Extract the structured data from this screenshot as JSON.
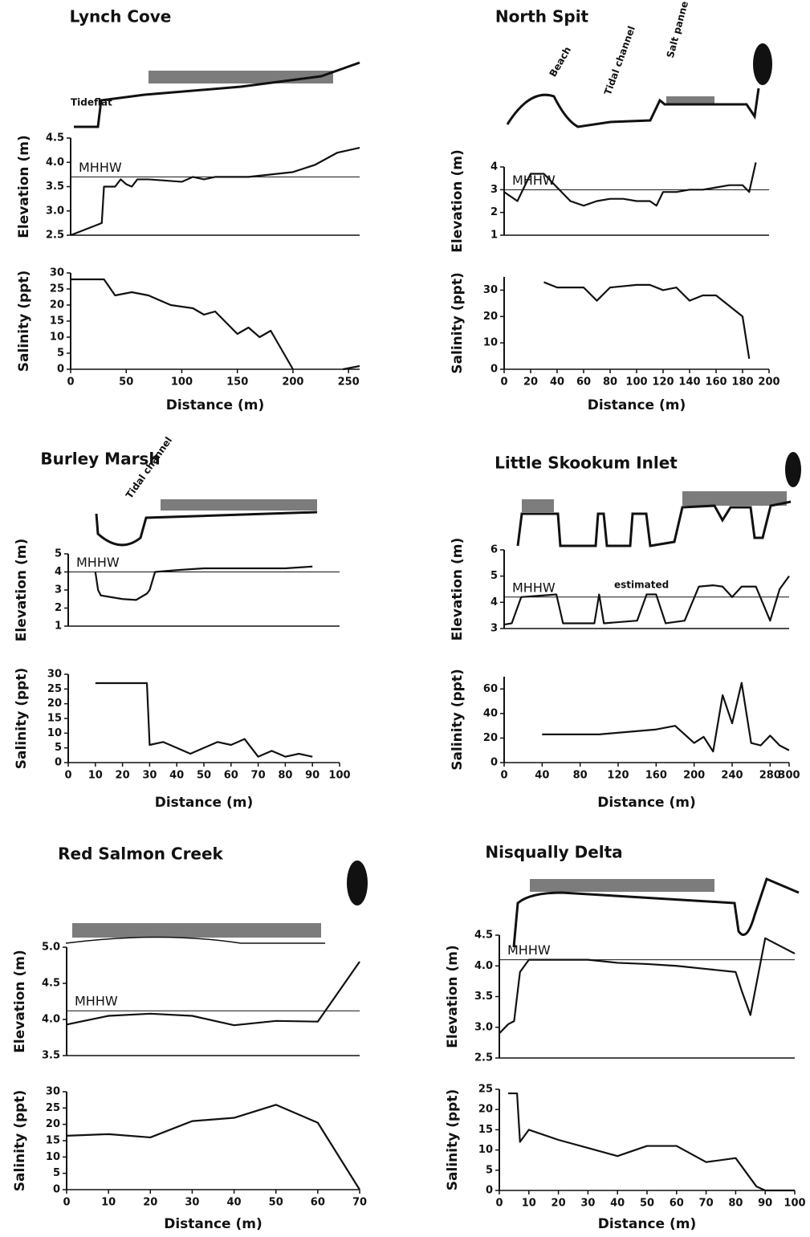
{
  "chart_data": [
    {
      "type": "line",
      "title": "Lynch Cove",
      "ylabel": "Elevation (m)",
      "annotations": [
        "Tideflat"
      ],
      "reference_line": {
        "label": "MHHW",
        "value": 3.7
      },
      "x": [
        0,
        28,
        30,
        40,
        45,
        50,
        55,
        60,
        70,
        100,
        110,
        120,
        130,
        140,
        160,
        180,
        200,
        220,
        240,
        260
      ],
      "values": [
        2.5,
        2.75,
        3.5,
        3.5,
        3.65,
        3.55,
        3.5,
        3.65,
        3.65,
        3.6,
        3.7,
        3.65,
        3.7,
        3.7,
        3.7,
        3.75,
        3.8,
        3.95,
        4.2,
        4.3
      ],
      "color": "#111111",
      "xlim": [
        0,
        260
      ],
      "ylim": [
        2.5,
        4.5
      ],
      "yticks": [
        2.5,
        {
          "value": 3,
          "label": "3.0"
        },
        3.5,
        {
          "value": 4,
          "label": "4.0"
        },
        4.5
      ]
    },
    {
      "type": "line",
      "ylabel": "Salinity (ppt)",
      "xlabel": "Distance (m)",
      "x": [
        0,
        30,
        40,
        55,
        70,
        90,
        110,
        120,
        130,
        150,
        160,
        170,
        180,
        200,
        225,
        245,
        260
      ],
      "values": [
        28,
        28,
        23,
        24,
        23,
        20,
        19,
        17,
        18,
        11,
        13,
        10,
        12,
        0,
        null,
        0,
        1
      ],
      "color": "#111111",
      "xlim": [
        0,
        260
      ],
      "ylim": [
        0,
        30
      ],
      "xticks": [
        0,
        50,
        100,
        150,
        200,
        250
      ],
      "yticks": [
        0,
        5,
        10,
        15,
        20,
        25,
        30
      ]
    },
    {
      "type": "line",
      "title": "North Spit",
      "ylabel": "Elevation (m)",
      "annotations": [
        "Beach",
        "Tidal channel",
        "Salt panne"
      ],
      "reference_line": {
        "label": "MHHW",
        "value": 3.0
      },
      "x": [
        0,
        10,
        20,
        30,
        40,
        50,
        60,
        70,
        80,
        90,
        100,
        110,
        115,
        120,
        130,
        140,
        150,
        160,
        170,
        180,
        185,
        190
      ],
      "values": [
        2.9,
        2.5,
        3.7,
        3.7,
        3.1,
        2.5,
        2.3,
        2.5,
        2.6,
        2.6,
        2.5,
        2.5,
        2.3,
        2.9,
        2.9,
        3.0,
        3.0,
        3.1,
        3.2,
        3.2,
        2.9,
        4.2
      ],
      "color": "#111111",
      "xlim": [
        0,
        200
      ],
      "ylim": [
        1,
        4
      ],
      "yticks": [
        1,
        2,
        3,
        4
      ]
    },
    {
      "type": "line",
      "ylabel": "Salinity (ppt)",
      "xlabel": "Distance (m)",
      "x": [
        30,
        40,
        60,
        70,
        80,
        100,
        110,
        120,
        130,
        140,
        150,
        160,
        170,
        180,
        185
      ],
      "values": [
        33,
        31,
        31,
        26,
        31,
        32,
        32,
        30,
        31,
        26,
        28,
        28,
        24,
        20,
        4
      ],
      "color": "#111111",
      "xlim": [
        0,
        200
      ],
      "ylim": [
        0,
        35
      ],
      "xticks": [
        0,
        20,
        40,
        60,
        80,
        100,
        120,
        140,
        160,
        180,
        200
      ],
      "yticks": [
        0,
        10,
        20,
        30
      ]
    },
    {
      "type": "line",
      "title": "Burley Marsh",
      "ylabel": "Elevation (m)",
      "annotations": [
        "Tidal channel"
      ],
      "reference_line": {
        "label": "MHHW",
        "value": 4.0
      },
      "x": [
        10,
        11,
        12,
        20,
        25,
        29,
        30,
        32,
        40,
        50,
        60,
        70,
        80,
        90
      ],
      "values": [
        4.0,
        3.0,
        2.7,
        2.5,
        2.45,
        2.8,
        3.0,
        4.0,
        4.1,
        4.2,
        4.2,
        4.2,
        4.2,
        4.3
      ],
      "color": "#111111",
      "xlim": [
        0,
        100
      ],
      "ylim": [
        1,
        5
      ],
      "yticks": [
        1,
        2,
        3,
        4,
        5
      ]
    },
    {
      "type": "line",
      "ylabel": "Salinity (ppt)",
      "xlabel": "Distance (m)",
      "x": [
        10,
        20,
        29,
        30,
        35,
        40,
        45,
        50,
        55,
        60,
        65,
        70,
        75,
        80,
        85,
        90
      ],
      "values": [
        27,
        27,
        27,
        6,
        7,
        5,
        3,
        5,
        7,
        6,
        8,
        2,
        4,
        2,
        3,
        2
      ],
      "color": "#111111",
      "xlim": [
        0,
        100
      ],
      "ylim": [
        0,
        30
      ],
      "xticks": [
        0,
        10,
        20,
        30,
        40,
        50,
        60,
        70,
        80,
        90,
        100
      ],
      "yticks": [
        0,
        5,
        10,
        15,
        20,
        25,
        30
      ]
    },
    {
      "type": "line",
      "title": "Little Skookum Inlet",
      "ylabel": "Elevation (m)",
      "annotations": [
        "estimated"
      ],
      "reference_line": {
        "label": "MHHW",
        "value": 4.2
      },
      "x": [
        0,
        8,
        18,
        55,
        62,
        95,
        100,
        105,
        140,
        150,
        160,
        170,
        190,
        205,
        220,
        230,
        240,
        250,
        265,
        280,
        290,
        300
      ],
      "values": [
        3.15,
        3.2,
        4.2,
        4.3,
        3.2,
        3.2,
        4.3,
        3.2,
        3.3,
        4.3,
        4.3,
        3.2,
        3.3,
        4.6,
        4.65,
        4.6,
        4.2,
        4.6,
        4.6,
        3.3,
        4.5,
        5.0
      ],
      "color": "#111111",
      "xlim": [
        0,
        300
      ],
      "ylim": [
        3,
        6
      ],
      "yticks": [
        3,
        4,
        5,
        6
      ]
    },
    {
      "type": "line",
      "ylabel": "Salinity (ppt)",
      "xlabel": "Distance (m)",
      "x": [
        40,
        100,
        160,
        180,
        200,
        210,
        220,
        230,
        240,
        250,
        260,
        270,
        280,
        290,
        300
      ],
      "values": [
        23,
        23,
        27,
        30,
        16,
        21,
        9,
        55,
        32,
        65,
        16,
        14,
        22,
        14,
        10
      ],
      "color": "#111111",
      "xlim": [
        0,
        300
      ],
      "ylim": [
        0,
        70
      ],
      "xticks": [
        0,
        40,
        80,
        120,
        160,
        200,
        240,
        280,
        300
      ],
      "yticks": [
        0,
        20,
        40,
        60
      ]
    },
    {
      "type": "line",
      "title": "Red Salmon Creek",
      "ylabel": "Elevation (m)",
      "reference_line": {
        "label": "MHHW",
        "value": 4.12
      },
      "x": [
        0,
        10,
        20,
        30,
        40,
        50,
        60,
        70
      ],
      "values": [
        3.93,
        4.05,
        4.08,
        4.05,
        3.92,
        3.98,
        3.97,
        4.8
      ],
      "color": "#111111",
      "xlim": [
        0,
        70
      ],
      "ylim": [
        3.5,
        5
      ],
      "yticks": [
        3.5,
        {
          "value": 4,
          "label": "4.0"
        },
        4.5,
        {
          "value": 5,
          "label": "5.0"
        }
      ]
    },
    {
      "type": "line",
      "ylabel": "Salinity (ppt)",
      "xlabel": "Distance (m)",
      "x": [
        0,
        10,
        20,
        30,
        40,
        50,
        60,
        70
      ],
      "values": [
        16.5,
        17,
        16,
        21,
        22,
        26,
        20.5,
        0
      ],
      "color": "#111111",
      "xlim": [
        0,
        70
      ],
      "ylim": [
        0,
        30
      ],
      "xticks": [
        0,
        10,
        20,
        30,
        40,
        50,
        60,
        70
      ],
      "yticks": [
        0,
        5,
        10,
        15,
        20,
        25,
        30
      ]
    },
    {
      "type": "line",
      "title": "Nisqually Delta",
      "ylabel": "Elevation (m)",
      "reference_line": {
        "label": "MHHW",
        "value": 4.1
      },
      "x": [
        0,
        3,
        5,
        7,
        10,
        20,
        30,
        40,
        50,
        60,
        70,
        80,
        82,
        85,
        90,
        100
      ],
      "values": [
        2.9,
        3.05,
        3.1,
        3.9,
        4.1,
        4.1,
        4.1,
        4.05,
        4.03,
        4.0,
        3.95,
        3.9,
        3.6,
        3.2,
        4.45,
        4.2
      ],
      "color": "#111111",
      "xlim": [
        0,
        100
      ],
      "ylim": [
        2.5,
        4.5
      ],
      "yticks": [
        2.5,
        {
          "value": 3,
          "label": "3.0"
        },
        3.5,
        {
          "value": 4,
          "label": "4.0"
        },
        4.5
      ]
    },
    {
      "type": "line",
      "ylabel": "Salinity (ppt)",
      "xlabel": "Distance (m)",
      "x": [
        3,
        6,
        7,
        10,
        20,
        30,
        40,
        50,
        60,
        70,
        80,
        87,
        90,
        100
      ],
      "values": [
        24,
        24,
        12,
        15,
        12.5,
        10.5,
        8.5,
        11,
        11,
        7,
        8,
        1,
        0,
        0
      ],
      "color": "#111111",
      "xlim": [
        0,
        100
      ],
      "ylim": [
        0,
        25
      ],
      "xticks": [
        0,
        10,
        20,
        30,
        40,
        50,
        60,
        70,
        80,
        90,
        100
      ],
      "yticks": [
        0,
        5,
        10,
        15,
        20,
        25
      ]
    }
  ]
}
